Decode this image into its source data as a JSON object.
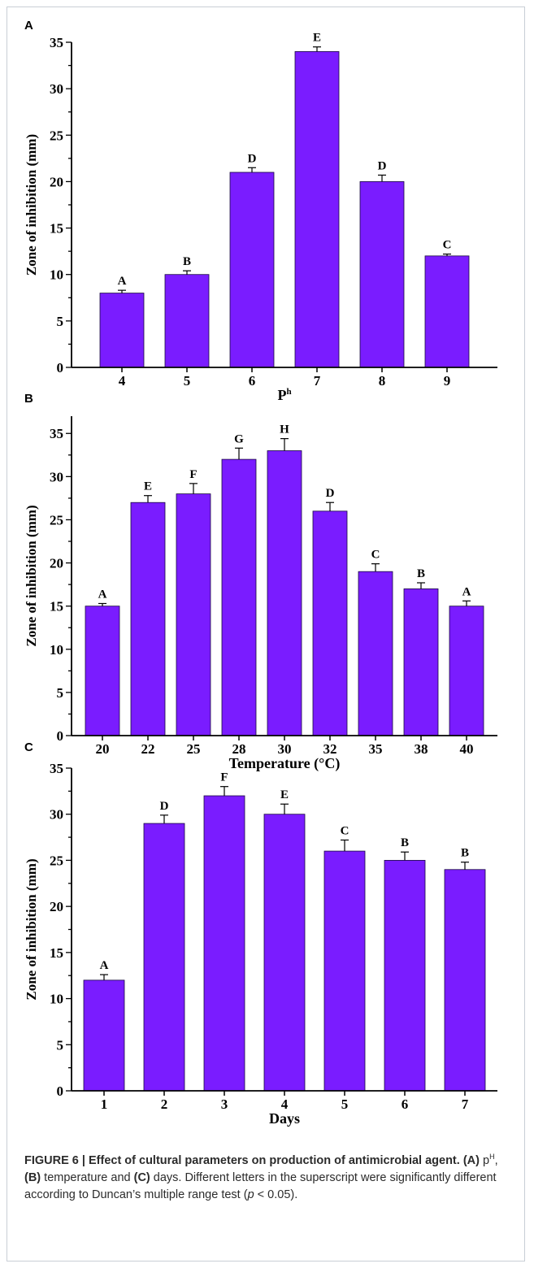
{
  "colors": {
    "bar": "#7a1cff",
    "bar_stroke": "#1a0a40",
    "axis": "#000000"
  },
  "chart_data": [
    {
      "type": "bar",
      "panel": "A",
      "xlabel": "P",
      "xlabel_sup": "h",
      "ylabel": "Zone of inhibition (mm)",
      "ylim": [
        0,
        35
      ],
      "yticks": [
        "0",
        "5",
        "10",
        "15",
        "20",
        "25",
        "30",
        "35"
      ],
      "categories": [
        "4",
        "5",
        "6",
        "7",
        "8",
        "9"
      ],
      "values": [
        8,
        10,
        21,
        34,
        20,
        12
      ],
      "errors": [
        0.3,
        0.4,
        0.5,
        0.5,
        0.7,
        0.2
      ],
      "letters": [
        "A",
        "B",
        "D",
        "E",
        "D",
        "C"
      ]
    },
    {
      "type": "bar",
      "panel": "B",
      "xlabel": "Temperature (°C)",
      "ylabel": "Zone of inhibition (mm)",
      "ylim": [
        0,
        37
      ],
      "yticks": [
        "0",
        "5",
        "10",
        "15",
        "20",
        "25",
        "30",
        "35"
      ],
      "categories": [
        "20",
        "22",
        "25",
        "28",
        "30",
        "32",
        "35",
        "38",
        "40"
      ],
      "values": [
        15,
        27,
        28,
        32,
        33,
        26,
        19,
        17,
        15
      ],
      "errors": [
        0.3,
        0.8,
        1.2,
        1.3,
        1.4,
        1.0,
        0.9,
        0.7,
        0.6
      ],
      "letters": [
        "A",
        "E",
        "F",
        "G",
        "H",
        "D",
        "C",
        "B",
        "A"
      ]
    },
    {
      "type": "bar",
      "panel": "C",
      "xlabel": "Days",
      "ylabel": "Zone of inhibition (mm)",
      "ylim": [
        0,
        35
      ],
      "yticks": [
        "0",
        "5",
        "10",
        "15",
        "20",
        "25",
        "30",
        "35"
      ],
      "categories": [
        "1",
        "2",
        "3",
        "4",
        "5",
        "6",
        "7"
      ],
      "values": [
        12,
        29,
        32,
        30,
        26,
        25,
        24
      ],
      "errors": [
        0.6,
        0.9,
        1.0,
        1.1,
        1.2,
        0.9,
        0.8
      ],
      "letters": [
        "A",
        "D",
        "F",
        "E",
        "C",
        "B",
        "B"
      ]
    }
  ],
  "caption": {
    "label": "FIGURE 6 | Effect of cultural parameters on production of antimicrobial agent.",
    "a_tag": "(A)",
    "a_text_base": "p",
    "a_text_sup": "H",
    "sep1": ", ",
    "b_tag": "(B)",
    "b_text": " temperature and ",
    "c_tag": "(C)",
    "c_text": " days. Different letters in the superscript were significantly different according to Duncan’s multiple range test (",
    "p_symbol": "p",
    "p_rest": " < 0.05)."
  }
}
